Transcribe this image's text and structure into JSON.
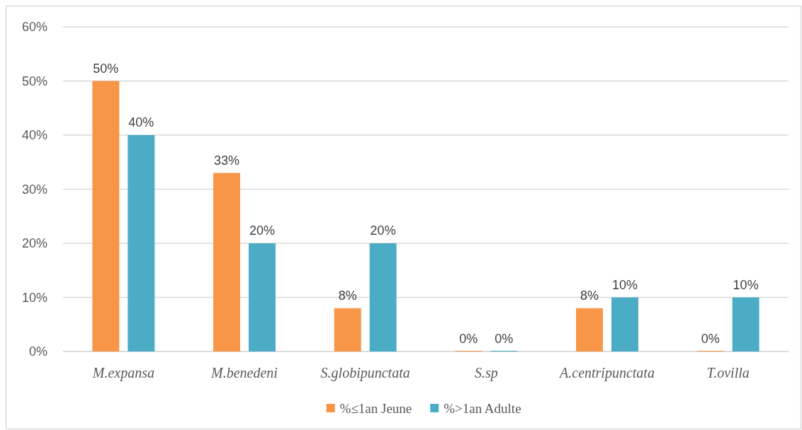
{
  "chart_data": {
    "type": "bar",
    "categories": [
      "M.expansa",
      "M.benedeni",
      "S.globipunctata",
      "S.sp",
      "A.centripunctata",
      "T.ovilla"
    ],
    "series": [
      {
        "name": "%≤1an Jeune",
        "color": "#f79646",
        "values": [
          50,
          33,
          8,
          0,
          8,
          0
        ],
        "value_labels": [
          "50%",
          "33%",
          "8%",
          "0%",
          "8%",
          "0%"
        ]
      },
      {
        "name": "%>1an Adulte",
        "color": "#4bacc6",
        "values": [
          40,
          20,
          20,
          0,
          10,
          10
        ],
        "value_labels": [
          "40%",
          "20%",
          "20%",
          "0%",
          "10%",
          "10%"
        ]
      }
    ],
    "ylim": [
      0,
      60
    ],
    "yticks": [
      {
        "value": 0,
        "label": "0%"
      },
      {
        "value": 10,
        "label": "10%"
      },
      {
        "value": 20,
        "label": "20%"
      },
      {
        "value": 30,
        "label": "30%"
      },
      {
        "value": 40,
        "label": "40%"
      },
      {
        "value": 50,
        "label": "50%"
      },
      {
        "value": 60,
        "label": "60%"
      }
    ],
    "grid": "y",
    "legend": "bottom"
  }
}
